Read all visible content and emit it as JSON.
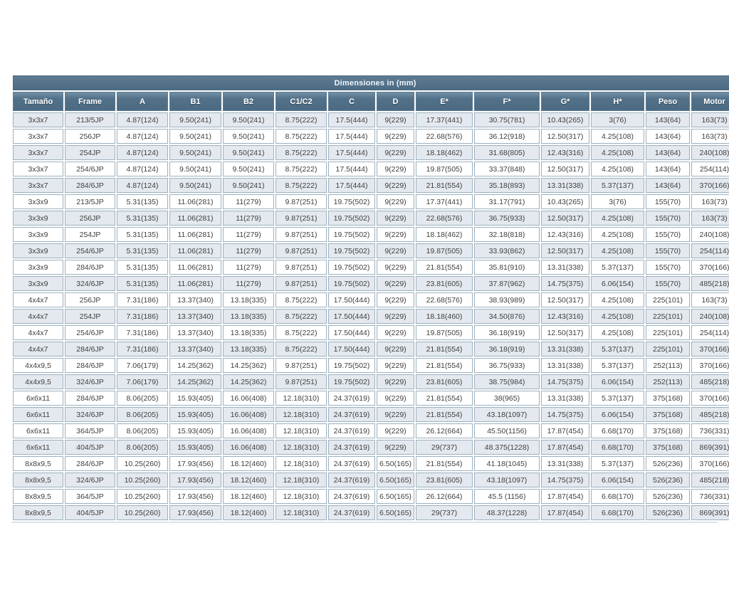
{
  "colors": {
    "header_bg": "#4c6b83",
    "header_bg_light": "#7290a5",
    "header_text": "#ffffff",
    "row_alt_bg": "#e4e9ef",
    "row_bg": "#ffffff",
    "cell_border": "#9cb0be",
    "data_text": "#3f3f3f"
  },
  "chart_data": {
    "type": "table",
    "title": "Dimensiones in (mm)",
    "columns": [
      "Tamaño",
      "Frame",
      "A",
      "B1",
      "B2",
      "C1/C2",
      "C",
      "D",
      "E*",
      "F*",
      "G*",
      "H*",
      "Peso",
      "Motor"
    ],
    "rows": [
      [
        "3x3x7",
        "213/5JP",
        "4.87(124)",
        "9.50(241)",
        "9.50(241)",
        "8.75(222)",
        "17.5(444)",
        "9(229)",
        "17.37(441)",
        "30.75(781)",
        "10.43(265)",
        "3(76)",
        "143(64)",
        "163(73)"
      ],
      [
        "3x3x7",
        "256JP",
        "4.87(124)",
        "9.50(241)",
        "9.50(241)",
        "8.75(222)",
        "17.5(444)",
        "9(229)",
        "22.68(576)",
        "36.12(918)",
        "12.50(317)",
        "4.25(108)",
        "143(64)",
        "163(73)"
      ],
      [
        "3x3x7",
        "254JP",
        "4.87(124)",
        "9.50(241)",
        "9.50(241)",
        "8.75(222)",
        "17.5(444)",
        "9(229)",
        "18.18(462)",
        "31.68(805)",
        "12.43(316)",
        "4.25(108)",
        "143(64)",
        "240(108)"
      ],
      [
        "3x3x7",
        "254/6JP",
        "4.87(124)",
        "9.50(241)",
        "9.50(241)",
        "8.75(222)",
        "17.5(444)",
        "9(229)",
        "19.87(505)",
        "33.37(848)",
        "12.50(317)",
        "4.25(108)",
        "143(64)",
        "254(114)"
      ],
      [
        "3x3x7",
        "284/6JP",
        "4.87(124)",
        "9.50(241)",
        "9.50(241)",
        "8.75(222)",
        "17.5(444)",
        "9(229)",
        "21.81(554)",
        "35.18(893)",
        "13.31(338)",
        "5.37(137)",
        "143(64)",
        "370(166)"
      ],
      [
        "3x3x9",
        "213/5JP",
        "5.31(135)",
        "11.06(281)",
        "11(279)",
        "9.87(251)",
        "19.75(502)",
        "9(229)",
        "17.37(441)",
        "31.17(791)",
        "10.43(265)",
        "3(76)",
        "155(70)",
        "163(73)"
      ],
      [
        "3x3x9",
        "256JP",
        "5.31(135)",
        "11.06(281)",
        "11(279)",
        "9.87(251)",
        "19.75(502)",
        "9(229)",
        "22.68(576)",
        "36.75(933)",
        "12.50(317)",
        "4.25(108)",
        "155(70)",
        "163(73)"
      ],
      [
        "3x3x9",
        "254JP",
        "5.31(135)",
        "11.06(281)",
        "11(279)",
        "9.87(251)",
        "19.75(502)",
        "9(229)",
        "18.18(462)",
        "32.18(818)",
        "12.43(316)",
        "4.25(108)",
        "155(70)",
        "240(108)"
      ],
      [
        "3x3x9",
        "254/6JP",
        "5.31(135)",
        "11.06(281)",
        "11(279)",
        "9.87(251)",
        "19.75(502)",
        "9(229)",
        "19.87(505)",
        "33.93(862)",
        "12.50(317)",
        "4.25(108)",
        "155(70)",
        "254(114)"
      ],
      [
        "3x3x9",
        "284/6JP",
        "5.31(135)",
        "11.06(281)",
        "11(279)",
        "9.87(251)",
        "19.75(502)",
        "9(229)",
        "21.81(554)",
        "35.81(910)",
        "13.31(338)",
        "5.37(137)",
        "155(70)",
        "370(166)"
      ],
      [
        "3x3x9",
        "324/6JP",
        "5.31(135)",
        "11.06(281)",
        "11(279)",
        "9.87(251)",
        "19.75(502)",
        "9(229)",
        "23.81(605)",
        "37.87(962)",
        "14.75(375)",
        "6.06(154)",
        "155(70)",
        "485(218)"
      ],
      [
        "4x4x7",
        "256JP",
        "7.31(186)",
        "13.37(340)",
        "13.18(335)",
        "8.75(222)",
        "17.50(444)",
        "9(229)",
        "22.68(576)",
        "38.93(989)",
        "12.50(317)",
        "4.25(108)",
        "225(101)",
        "163(73)"
      ],
      [
        "4x4x7",
        "254JP",
        "7.31(186)",
        "13.37(340)",
        "13.18(335)",
        "8.75(222)",
        "17.50(444)",
        "9(229)",
        "18.18(460)",
        "34.50(876)",
        "12.43(316)",
        "4.25(108)",
        "225(101)",
        "240(108)"
      ],
      [
        "4x4x7",
        "254/6JP",
        "7.31(186)",
        "13.37(340)",
        "13.18(335)",
        "8.75(222)",
        "17.50(444)",
        "9(229)",
        "19.87(505)",
        "36.18(919)",
        "12.50(317)",
        "4.25(108)",
        "225(101)",
        "254(114)"
      ],
      [
        "4x4x7",
        "284/6JP",
        "7.31(186)",
        "13.37(340)",
        "13.18(335)",
        "8.75(222)",
        "17.50(444)",
        "9(229)",
        "21.81(554)",
        "36.18(919)",
        "13.31(338)",
        "5.37(137)",
        "225(101)",
        "370(166)"
      ],
      [
        "4x4x9,5",
        "284/6JP",
        "7.06(179)",
        "14.25(362)",
        "14.25(362)",
        "9.87(251)",
        "19.75(502)",
        "9(229)",
        "21.81(554)",
        "36.75(933)",
        "13.31(338)",
        "5.37(137)",
        "252(113)",
        "370(166)"
      ],
      [
        "4x4x9,5",
        "324/6JP",
        "7.06(179)",
        "14.25(362)",
        "14.25(362)",
        "9.87(251)",
        "19.75(502)",
        "9(229)",
        "23.81(605)",
        "38.75(984)",
        "14.75(375)",
        "6.06(154)",
        "252(113)",
        "485(218)"
      ],
      [
        "6x6x11",
        "284/6JP",
        "8.06(205)",
        "15.93(405)",
        "16.06(408)",
        "12.18(310)",
        "24.37(619)",
        "9(229)",
        "21.81(554)",
        "38(965)",
        "13.31(338)",
        "5.37(137)",
        "375(168)",
        "370(166)"
      ],
      [
        "6x6x11",
        "324/6JP",
        "8.06(205)",
        "15.93(405)",
        "16.06(408)",
        "12.18(310)",
        "24.37(619)",
        "9(229)",
        "21.81(554)",
        "43.18(1097)",
        "14.75(375)",
        "6.06(154)",
        "375(168)",
        "485(218)"
      ],
      [
        "6x6x11",
        "364/5JP",
        "8.06(205)",
        "15.93(405)",
        "16.06(408)",
        "12.18(310)",
        "24.37(619)",
        "9(229)",
        "26.12(664)",
        "45.50(1156)",
        "17.87(454)",
        "6.68(170)",
        "375(168)",
        "736(331)"
      ],
      [
        "6x6x11",
        "404/5JP",
        "8.06(205)",
        "15.93(405)",
        "16.06(408)",
        "12.18(310)",
        "24.37(619)",
        "9(229)",
        "29(737)",
        "48.375(1228)",
        "17.87(454)",
        "6.68(170)",
        "375(168)",
        "869(391)"
      ],
      [
        "8x8x9,5",
        "284/6JP",
        "10.25(260)",
        "17.93(456)",
        "18.12(460)",
        "12.18(310)",
        "24.37(619)",
        "6.50(165)",
        "21.81(554)",
        "41.18(1045)",
        "13.31(338)",
        "5.37(137)",
        "526(236)",
        "370(166)"
      ],
      [
        "8x8x9,5",
        "324/6JP",
        "10.25(260)",
        "17.93(456)",
        "18.12(460)",
        "12.18(310)",
        "24.37(619)",
        "6.50(165)",
        "23.81(605)",
        "43.18(1097)",
        "14.75(375)",
        "6.06(154)",
        "526(236)",
        "485(218)"
      ],
      [
        "8x8x9,5",
        "364/5JP",
        "10.25(260)",
        "17.93(456)",
        "18.12(460)",
        "12.18(310)",
        "24.37(619)",
        "6.50(165)",
        "26.12(664)",
        "45.5 (1156)",
        "17.87(454)",
        "6.68(170)",
        "526(236)",
        "736(331)"
      ],
      [
        "8x8x9,5",
        "404/5JP",
        "10.25(260)",
        "17.93(456)",
        "18.12(460)",
        "12.18(310)",
        "24.37(619)",
        "6.50(165)",
        "29(737)",
        "48.37(1228)",
        "17.87(454)",
        "6.68(170)",
        "526(236)",
        "869(391)"
      ]
    ]
  }
}
